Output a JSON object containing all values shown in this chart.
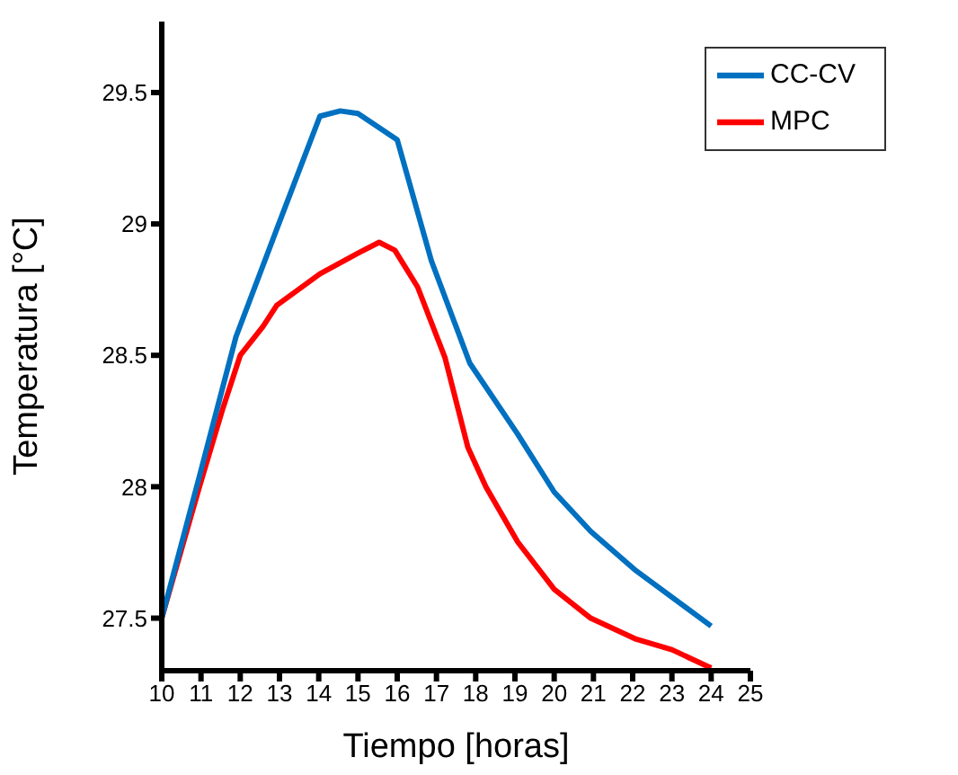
{
  "chart_data": {
    "type": "line",
    "xlabel": "Tiempo [horas]",
    "ylabel": "Temperatura [°C]",
    "xlim": [
      10,
      25
    ],
    "xticks": [
      10,
      11,
      12,
      13,
      14,
      15,
      16,
      17,
      18,
      19,
      20,
      21,
      22,
      23,
      24,
      25
    ],
    "ylim": [
      27.3,
      29.77
    ],
    "yticks": [
      27.5,
      28,
      28.5,
      29,
      29.5
    ],
    "grid": false,
    "legend": "top right",
    "marker": "none",
    "line_style": "solid",
    "series": [
      {
        "name": "MPC",
        "color": "#ff0000",
        "x": [
          10,
          10.96,
          11.54,
          12.0,
          12.58,
          12.93,
          14.03,
          15.02,
          15.54,
          15.94,
          16.52,
          17.22,
          17.8,
          18.26,
          19.07,
          20.0,
          20.93,
          22.09,
          23.0,
          24.0
        ],
        "values": [
          27.5,
          28.0,
          28.29,
          28.5,
          28.61,
          28.69,
          28.81,
          28.89,
          28.93,
          28.9,
          28.76,
          28.49,
          28.15,
          28.0,
          27.79,
          27.61,
          27.5,
          27.42,
          27.38,
          27.31
        ]
      },
      {
        "name": "CC-CV",
        "color": "#0070c0",
        "x": [
          10,
          10.96,
          11.89,
          12.93,
          14.03,
          14.55,
          15.0,
          16.0,
          16.87,
          17.85,
          19.07,
          20.0,
          20.93,
          22.09,
          24.0
        ],
        "values": [
          27.5,
          28.04,
          28.57,
          28.98,
          29.41,
          29.43,
          29.42,
          29.32,
          28.86,
          28.47,
          28.2,
          27.98,
          27.83,
          27.68,
          27.47
        ]
      }
    ]
  }
}
